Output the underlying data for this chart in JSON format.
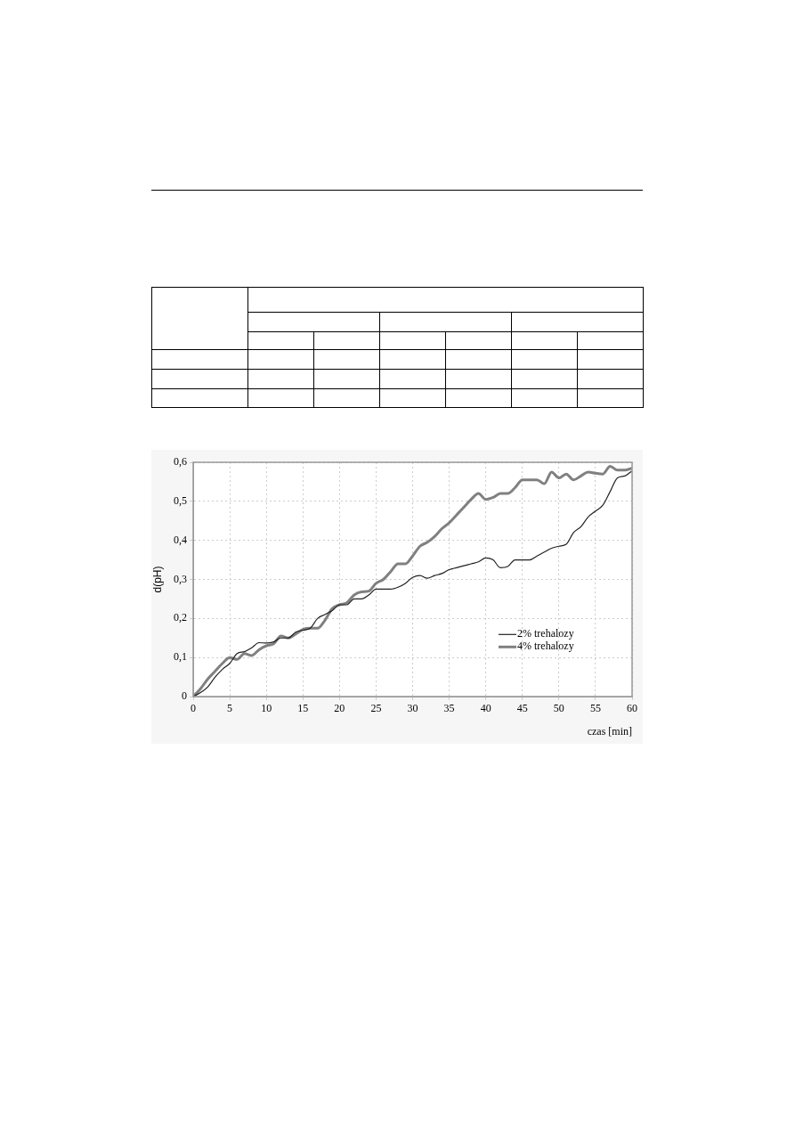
{
  "chart_data": {
    "type": "line",
    "xlabel": "czas [min]",
    "ylabel": "d(pH)",
    "x": [
      0,
      1,
      2,
      3,
      4,
      5,
      6,
      7,
      8,
      9,
      10,
      11,
      12,
      13,
      14,
      15,
      16,
      17,
      18,
      19,
      20,
      21,
      22,
      23,
      24,
      25,
      26,
      27,
      28,
      29,
      30,
      31,
      32,
      33,
      34,
      35,
      36,
      37,
      38,
      39,
      40,
      41,
      42,
      43,
      44,
      45,
      46,
      47,
      48,
      49,
      50,
      51,
      52,
      53,
      54,
      55,
      56,
      57,
      58,
      59,
      60
    ],
    "series": [
      {
        "name": "2% trehalozy",
        "color": "#222222",
        "values": [
          0,
          0.01,
          0.025,
          0.05,
          0.07,
          0.085,
          0.11,
          0.115,
          0.125,
          0.138,
          0.137,
          0.14,
          0.15,
          0.15,
          0.165,
          0.17,
          0.175,
          0.2,
          0.21,
          0.22,
          0.235,
          0.235,
          0.25,
          0.25,
          0.26,
          0.275,
          0.275,
          0.275,
          0.28,
          0.29,
          0.305,
          0.31,
          0.303,
          0.31,
          0.315,
          0.325,
          0.33,
          0.335,
          0.34,
          0.345,
          0.355,
          0.35,
          0.33,
          0.333,
          0.35,
          0.35,
          0.35,
          0.36,
          0.37,
          0.38,
          0.385,
          0.39,
          0.42,
          0.435,
          0.46,
          0.475,
          0.49,
          0.525,
          0.56,
          0.565,
          0.578
        ]
      },
      {
        "name": "4% trehalozy",
        "color": "#808080",
        "values": [
          0,
          0.02,
          0.045,
          0.065,
          0.085,
          0.1,
          0.095,
          0.11,
          0.105,
          0.12,
          0.13,
          0.135,
          0.155,
          0.15,
          0.16,
          0.172,
          0.175,
          0.175,
          0.195,
          0.225,
          0.235,
          0.24,
          0.26,
          0.268,
          0.27,
          0.29,
          0.3,
          0.32,
          0.34,
          0.34,
          0.36,
          0.385,
          0.395,
          0.41,
          0.43,
          0.445,
          0.465,
          0.485,
          0.505,
          0.52,
          0.505,
          0.51,
          0.52,
          0.52,
          0.535,
          0.555,
          0.555,
          0.555,
          0.545,
          0.575,
          0.56,
          0.57,
          0.555,
          0.565,
          0.575,
          0.572,
          0.57,
          0.59,
          0.58,
          0.58,
          0.585
        ]
      }
    ],
    "xlim": [
      0,
      60
    ],
    "xticks": [
      0,
      5,
      10,
      15,
      20,
      25,
      30,
      35,
      40,
      45,
      50,
      55,
      60
    ],
    "ylim": [
      0,
      0.6
    ],
    "yticks": [
      0,
      {
        "value": 0.1,
        "label": "0,1"
      },
      {
        "value": 0.2,
        "label": "0,2"
      },
      {
        "value": 0.3,
        "label": "0,3"
      },
      {
        "value": 0.4,
        "label": "0,4"
      },
      {
        "value": 0.5,
        "label": "0,5"
      },
      {
        "value": 0.6,
        "label": "0,6"
      }
    ],
    "grid": true,
    "legend": "bottom right",
    "marker": "none",
    "line_style": "solid"
  }
}
